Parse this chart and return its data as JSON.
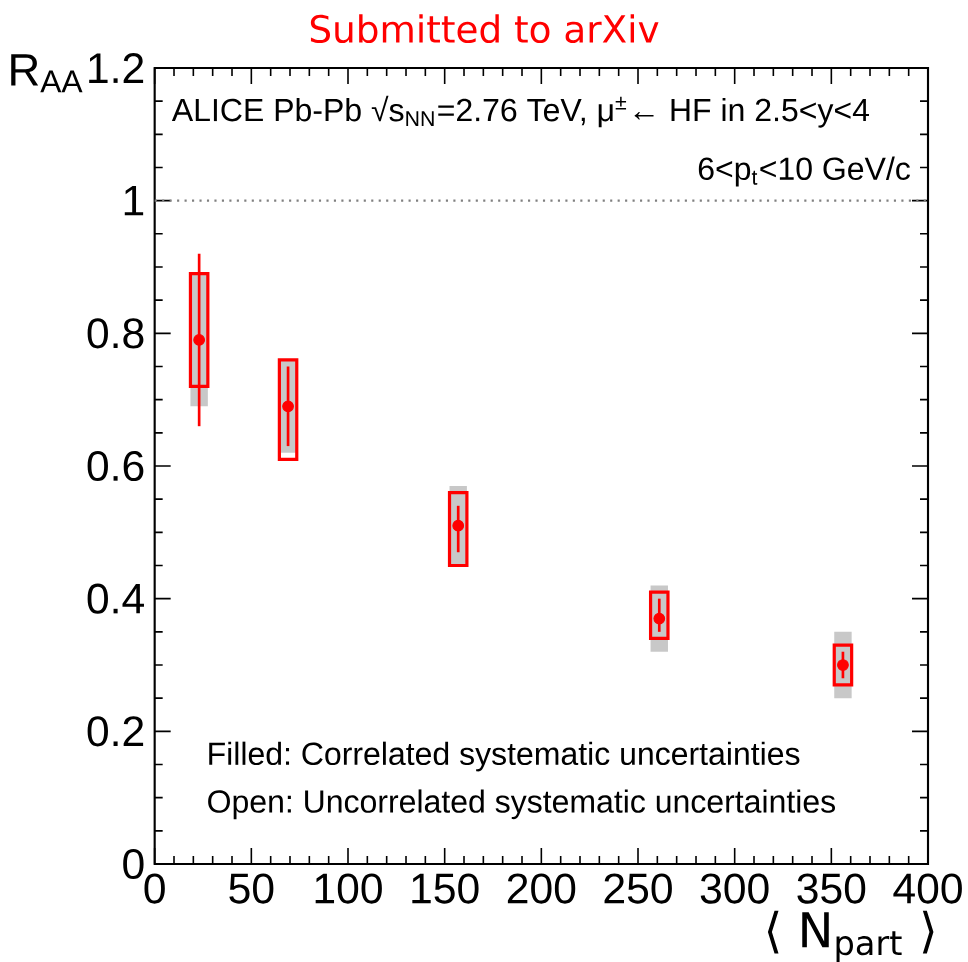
{
  "chart_data": {
    "type": "scatter",
    "title": "Submitted to arXiv",
    "ylabel": "R$_{AA}$",
    "xlabel": "⟨ N$_{part}$ ⟩",
    "annotations": [
      "ALICE Pb-Pb √s$_{NN}$=2.76 TeV, μ$^{±}$← HF in 2.5<y<4",
      "6<p$_{t}$<10 GeV/c",
      "Filled: Correlated systematic uncertainties",
      "Open: Uncorrelated systematic uncertainties"
    ],
    "xlim": [
      0,
      400
    ],
    "xticks": [
      0,
      50,
      100,
      150,
      200,
      250,
      300,
      350,
      400
    ],
    "ylim": [
      0,
      1.2
    ],
    "yticks": [
      0,
      0.2,
      0.4,
      0.6,
      0.8,
      1,
      1.2
    ],
    "grid": false,
    "ref_lines": [
      {
        "axis": "y",
        "value": 1,
        "color": "#808080",
        "line_style": "dotted"
      }
    ],
    "series": [
      {
        "type": "bar",
        "color": "#c8c8c8",
        "x": [
          23,
          69,
          157,
          261,
          356
        ],
        "base": [
          0.69,
          0.62,
          0.45,
          0.32,
          0.25
        ],
        "values": [
          0.2,
          0.14,
          0.12,
          0.1,
          0.1
        ]
      },
      {
        "type": "bar",
        "color": "#ff0000",
        "x": [
          23,
          69,
          157,
          261,
          356
        ],
        "base": [
          0.72,
          0.61,
          0.45,
          0.34,
          0.27
        ],
        "values": [
          0.17,
          0.15,
          0.11,
          0.07,
          0.06
        ]
      },
      {
        "color": "#ff0000",
        "x": [
          23,
          69,
          157,
          261,
          356
        ],
        "values": [
          0.79,
          0.69,
          0.51,
          0.37,
          0.3
        ],
        "errors": [
          [
            0.66,
            0.92
          ],
          [
            0.63,
            0.75
          ],
          [
            0.47,
            0.54
          ],
          [
            0.35,
            0.4
          ],
          [
            0.28,
            0.32
          ]
        ]
      }
    ]
  }
}
